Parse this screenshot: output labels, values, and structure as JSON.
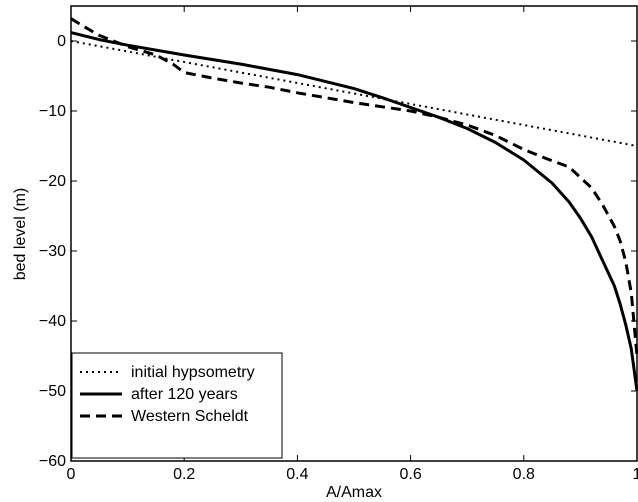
{
  "chart_data": {
    "type": "line",
    "xlabel": "A/Amax",
    "ylabel": "bed level (m)",
    "xlim": [
      0,
      1
    ],
    "ylim": [
      -60,
      5
    ],
    "xticks": [
      0,
      0.2,
      0.4,
      0.6,
      0.8,
      1
    ],
    "xtick_labels": [
      "0",
      "0.2",
      "0.4",
      "0.6",
      "0.8",
      "1"
    ],
    "yticks": [
      0,
      -10,
      -20,
      -30,
      -40,
      -50,
      -60
    ],
    "ytick_labels": [
      "0",
      "−10",
      "−20",
      "−30",
      "−40",
      "−50",
      "−60"
    ],
    "grid": false,
    "legend_position": "bottom-left",
    "series": [
      {
        "name": "initial hypsometry",
        "style": "dotted",
        "color": "#000000",
        "x": [
          0,
          1
        ],
        "y": [
          0,
          -15
        ]
      },
      {
        "name": "after 120 years",
        "style": "solid",
        "color": "#000000",
        "x": [
          0,
          0.05,
          0.1,
          0.15,
          0.2,
          0.3,
          0.4,
          0.5,
          0.55,
          0.6,
          0.65,
          0.7,
          0.75,
          0.8,
          0.85,
          0.88,
          0.9,
          0.92,
          0.94,
          0.96,
          0.97,
          0.98,
          0.99,
          1.0
        ],
        "y": [
          1.2,
          0.2,
          -0.6,
          -1.3,
          -2.0,
          -3.3,
          -4.8,
          -6.8,
          -8.1,
          -9.5,
          -10.9,
          -12.5,
          -14.5,
          -17.0,
          -20.3,
          -23.0,
          -25.3,
          -28.0,
          -31.5,
          -35.0,
          -37.5,
          -40.5,
          -44.0,
          -50.0
        ]
      },
      {
        "name": "Western Scheldt",
        "style": "dashed",
        "color": "#000000",
        "x": [
          0,
          0.02,
          0.05,
          0.1,
          0.15,
          0.18,
          0.2,
          0.25,
          0.3,
          0.35,
          0.4,
          0.5,
          0.55,
          0.6,
          0.65,
          0.7,
          0.75,
          0.8,
          0.84,
          0.88,
          0.9,
          0.92,
          0.94,
          0.96,
          0.97,
          0.98,
          0.99,
          1.0
        ],
        "y": [
          3.2,
          2.2,
          0.8,
          -0.8,
          -2.0,
          -3.3,
          -4.5,
          -5.3,
          -6.0,
          -6.6,
          -7.4,
          -8.8,
          -9.4,
          -10.0,
          -10.9,
          -12.0,
          -13.5,
          -15.5,
          -16.8,
          -18.0,
          -19.5,
          -21.0,
          -23.5,
          -26.5,
          -28.5,
          -31.5,
          -36.0,
          -45.0
        ]
      }
    ]
  }
}
